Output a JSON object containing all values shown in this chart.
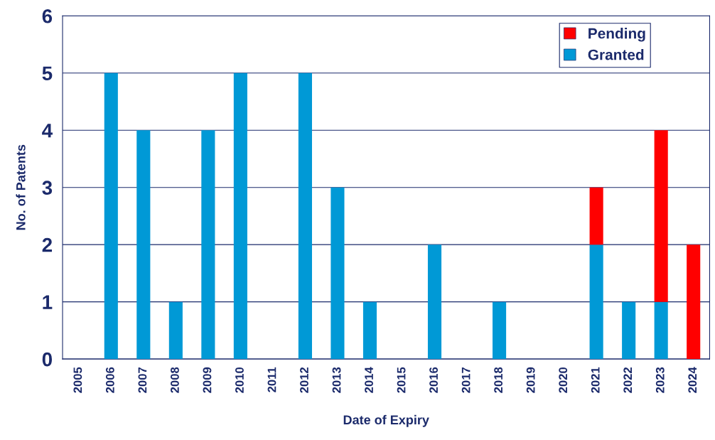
{
  "chart_data": {
    "type": "bar",
    "stacked": true,
    "xlabel": "Date of Expiry",
    "ylabel": "No. of Patents",
    "categories": [
      "2005",
      "2006",
      "2007",
      "2008",
      "2009",
      "2010",
      "2011",
      "2012",
      "2013",
      "2014",
      "2015",
      "2016",
      "2017",
      "2018",
      "2019",
      "2020",
      "2021",
      "2022",
      "2023",
      "2024"
    ],
    "series": [
      {
        "name": "Granted",
        "color": "#0099d6",
        "values": [
          0,
          5,
          4,
          1,
          4,
          5,
          0,
          5,
          3,
          1,
          0,
          2,
          0,
          1,
          0,
          0,
          2,
          1,
          1,
          0
        ]
      },
      {
        "name": "Pending",
        "color": "#ff0000",
        "values": [
          0,
          0,
          0,
          0,
          0,
          0,
          0,
          0,
          0,
          0,
          0,
          0,
          0,
          0,
          0,
          0,
          1,
          0,
          3,
          2
        ]
      }
    ],
    "ylim": [
      0,
      6
    ],
    "yticks": [
      0,
      1,
      2,
      3,
      4,
      5,
      6
    ],
    "grid": "y",
    "legend": "top right"
  }
}
